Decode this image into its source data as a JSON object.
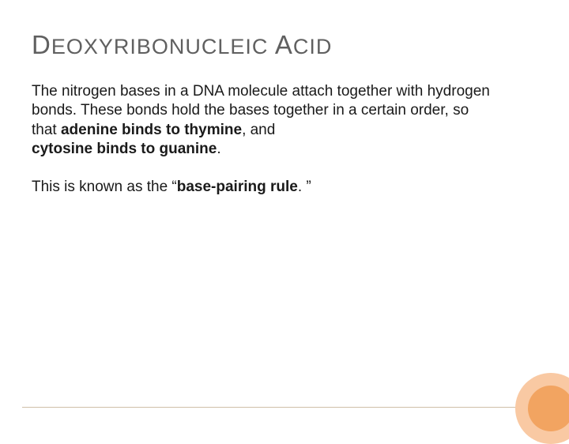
{
  "title": {
    "cap1": "D",
    "rest1": "EOXYRIBONUCLEIC ",
    "cap2": "A",
    "rest2": "CID"
  },
  "paragraphs": {
    "p1_a": "The nitrogen bases in a DNA molecule attach together with hydrogen bonds.  These bonds hold the bases together in a certain order, so that ",
    "p1_b": "adenine binds to thymine",
    "p1_c": ", and",
    "p1_d": "cytosine binds to guanine",
    "p1_e": ". ",
    "p2_a": "This is known as the “",
    "p2_b": "base-pairing rule",
    "p2_c": ". ”"
  },
  "colors": {
    "title_color": "#606060",
    "text_color": "#1a1a1a",
    "circle_outer": "#f9c9a3",
    "circle_inner": "#f2a461",
    "rule_color": "#d0bfa8",
    "background": "#ffffff"
  },
  "typography": {
    "title_small_caps_pt": 27,
    "title_large_caps_pt": 33,
    "body_pt": 19,
    "body_line_height": 1.28
  }
}
